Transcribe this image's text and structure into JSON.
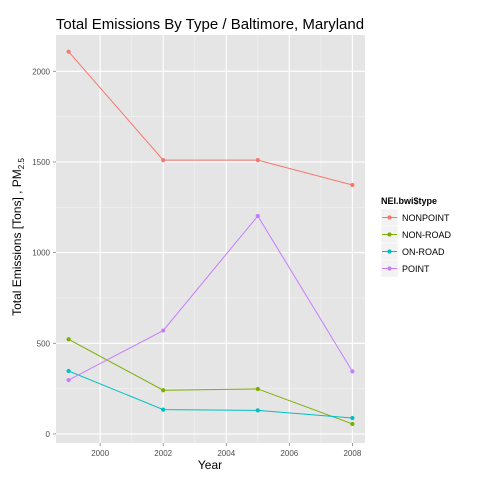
{
  "chart_data": {
    "type": "line",
    "title": "Total Emissions By Type / Baltimore, Maryland",
    "xlabel": "Year",
    "ylabel_main": "Total Emissions [Tons] , PM",
    "ylabel_sub": "2.5",
    "x": [
      1999,
      2002,
      2005,
      2008
    ],
    "xlim": [
      1998.6,
      2008.4
    ],
    "ylim": [
      -50,
      2200
    ],
    "xticks": [
      2000,
      2002,
      2004,
      2006,
      2008
    ],
    "yticks": [
      0,
      500,
      1000,
      1500,
      2000
    ],
    "grid": true,
    "legend": {
      "title": "NEI.bwi$type",
      "placement": "right"
    },
    "series": [
      {
        "name": "NONPOINT",
        "color": "#F8766D",
        "values": [
          2108,
          1510,
          1510,
          1373
        ]
      },
      {
        "name": "NON-ROAD",
        "color": "#7CAE00",
        "values": [
          522,
          241,
          248,
          55
        ]
      },
      {
        "name": "ON-ROAD",
        "color": "#00BFC4",
        "values": [
          347,
          134,
          130,
          88
        ]
      },
      {
        "name": "POINT",
        "color": "#C77CFF",
        "values": [
          297,
          570,
          1202,
          345
        ]
      }
    ]
  }
}
